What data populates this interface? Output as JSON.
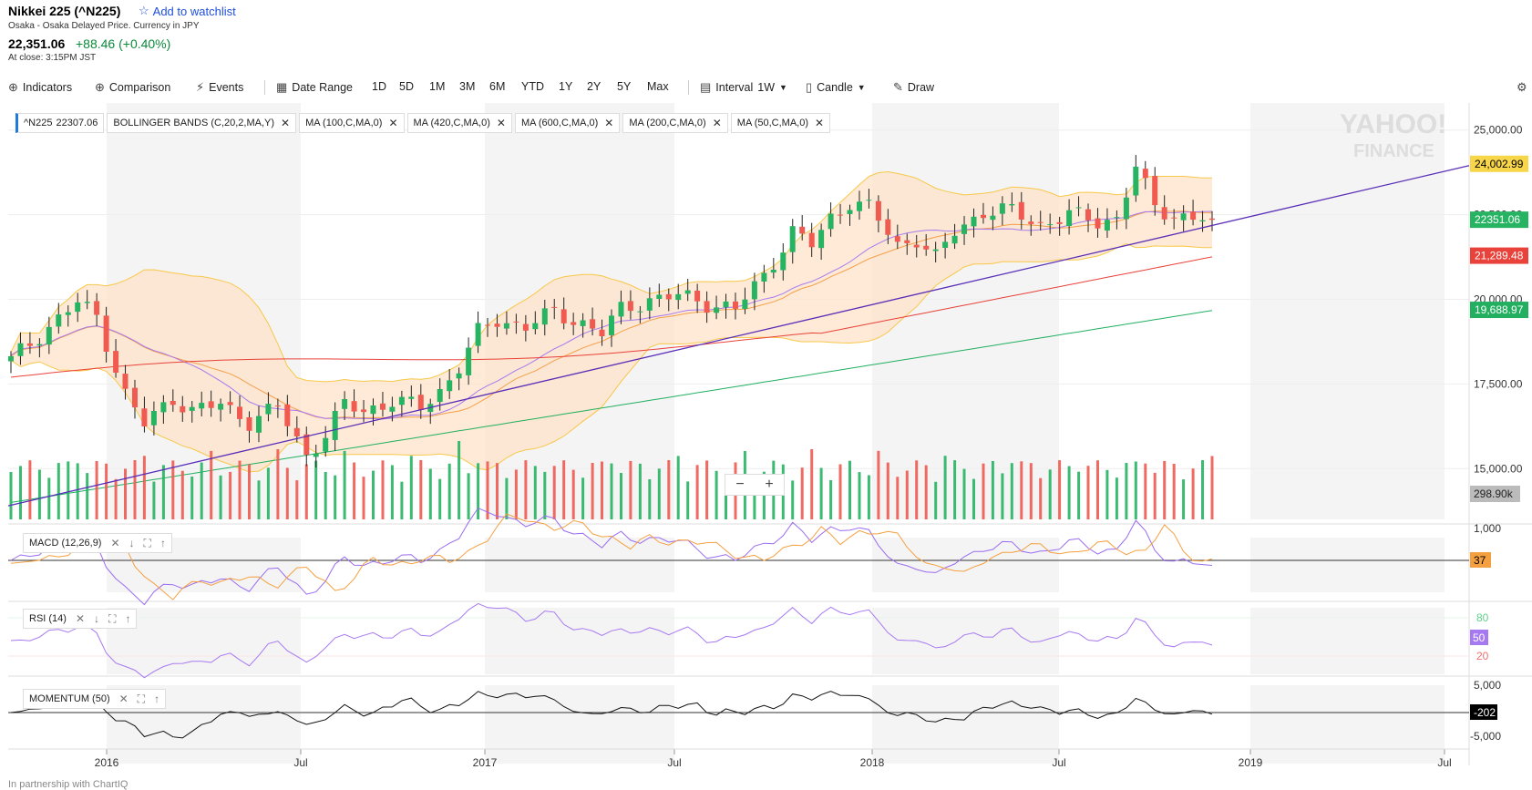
{
  "header": {
    "title": "Nikkei 225 (^N225)",
    "watchlist": "Add to watchlist",
    "subtitle": "Osaka - Osaka Delayed Price. Currency in JPY",
    "price": "22,351.06",
    "change": "+88.46 (+0.40%)",
    "close_time": "At close: 3:15PM JST"
  },
  "toolbar": {
    "indicators": "Indicators",
    "comparison": "Comparison",
    "events": "Events",
    "date_range": "Date Range",
    "ranges": [
      "1D",
      "5D",
      "1M",
      "3M",
      "6M",
      "YTD",
      "1Y",
      "2Y",
      "5Y",
      "Max"
    ],
    "interval_label": "Interval",
    "interval_value": "1W",
    "chart_type": "Candle",
    "draw": "Draw"
  },
  "tags": {
    "symbol": "^N225",
    "symbol_value": "22307.06",
    "bb": "BOLLINGER BANDS (C,20,2,MA,Y)",
    "ma100": "MA (100,C,MA,0)",
    "ma420": "MA (420,C,MA,0)",
    "ma600": "MA (600,C,MA,0)",
    "ma200": "MA (200,C,MA,0)",
    "ma50": "MA (50,C,MA,0)"
  },
  "panels": {
    "macd": "MACD (12,26,9)",
    "rsi": "RSI (14)",
    "momentum": "MOMENTUM (50)"
  },
  "footer": "In partnership with ChartIQ",
  "watermark": [
    "YAHOO!",
    "FINANCE"
  ],
  "colors": {
    "up": "#26b463",
    "down": "#f05a50",
    "band_fill": "#fde3c8",
    "band_line": "#f8c84a",
    "ma_orange": "#f5a04a",
    "ma_purple": "#a779f0",
    "ma_red": "#e8423a",
    "ma_green": "#22b060",
    "trend": "#5a2fb8",
    "macd": "#9a6cf0",
    "signal": "#f5a040"
  },
  "chart_data": {
    "type": "candlestick",
    "interval": "1W",
    "x_ticks": [
      "2016",
      "Jul",
      "2017",
      "Jul",
      "2018",
      "Jul",
      "2019",
      "Jul"
    ],
    "y_ticks": [
      "25,000.00",
      "22,500.00",
      "20,000.00",
      "17,500.00",
      "15,000.00"
    ],
    "ylim": [
      13500,
      25800
    ],
    "price_labels": [
      {
        "value": 24002.99,
        "text": "24,002.99",
        "color": "#f7d64a",
        "text_color": "#000"
      },
      {
        "value": 22351.06,
        "text": "22351.06",
        "color": "#26b463",
        "text_color": "#fff"
      },
      {
        "value": 21289.48,
        "text": "21,289.48",
        "color": "#e8423a",
        "text_color": "#fff"
      },
      {
        "value": 19688.97,
        "text": "19,688.97",
        "color": "#22b060",
        "text_color": "#fff"
      }
    ],
    "volume_label": "298.90k",
    "close_anchors": [
      [
        0,
        18200
      ],
      [
        4,
        19200
      ],
      [
        7,
        19900
      ],
      [
        9,
        19500
      ],
      [
        12,
        17200
      ],
      [
        14,
        16300
      ],
      [
        17,
        17100
      ],
      [
        19,
        16700
      ],
      [
        22,
        16900
      ],
      [
        25,
        16400
      ],
      [
        28,
        16800
      ],
      [
        31,
        15400
      ],
      [
        33,
        16000
      ],
      [
        35,
        16900
      ],
      [
        37,
        16700
      ],
      [
        40,
        17000
      ],
      [
        43,
        16800
      ],
      [
        45,
        17300
      ],
      [
        47,
        18000
      ],
      [
        49,
        19000
      ],
      [
        51,
        19400
      ],
      [
        54,
        19200
      ],
      [
        57,
        19600
      ],
      [
        60,
        19300
      ],
      [
        62,
        19000
      ],
      [
        64,
        19700
      ],
      [
        67,
        20000
      ],
      [
        70,
        20100
      ],
      [
        73,
        19900
      ],
      [
        76,
        19700
      ],
      [
        79,
        20700
      ],
      [
        82,
        22000
      ],
      [
        84,
        21600
      ],
      [
        86,
        22400
      ],
      [
        88,
        22900
      ],
      [
        90,
        22700
      ],
      [
        93,
        21600
      ],
      [
        95,
        21800
      ],
      [
        97,
        21200
      ],
      [
        99,
        22000
      ],
      [
        102,
        22600
      ],
      [
        105,
        22600
      ],
      [
        108,
        22200
      ],
      [
        111,
        22500
      ],
      [
        114,
        22300
      ],
      [
        116,
        22400
      ],
      [
        118,
        23900
      ],
      [
        120,
        22700
      ],
      [
        122,
        22500
      ],
      [
        124,
        22400
      ],
      [
        126,
        22400
      ]
    ],
    "macd": {
      "ticks": [
        "1,000"
      ],
      "value_label": "37"
    },
    "rsi": {
      "ticks": [
        "80",
        "20"
      ],
      "value_label": "50"
    },
    "momentum": {
      "ticks": [
        "5,000",
        "-5,000"
      ],
      "value_label": "-202"
    }
  }
}
